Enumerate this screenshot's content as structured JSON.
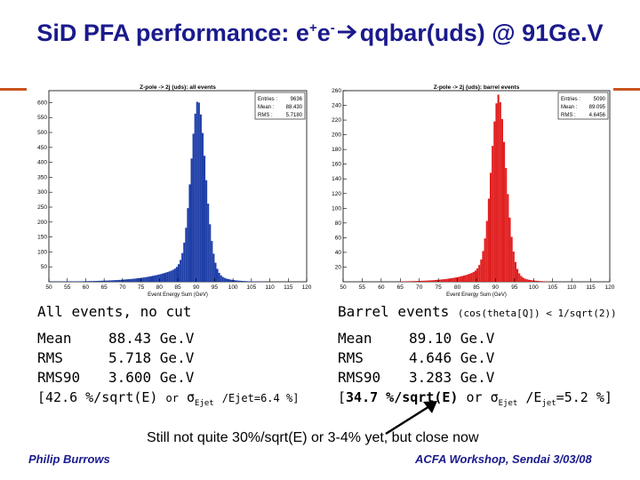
{
  "slide": {
    "title_prefix": "SiD PFA performance: e",
    "title_sup1": "+",
    "title_mid": "e",
    "title_sup2": "-",
    "title_suffix": "qqbar(uds) @ 91Ge.V",
    "arrow_icon": "right-arrow-icon",
    "accent_color": "#c8541e",
    "title_color": "#1a1a8c"
  },
  "chart_data": [
    {
      "type": "bar",
      "title": "Z-pole -> 2j (uds): all events",
      "xlabel": "Event Energy Sum (GeV)",
      "color": "#1f3fa8",
      "xlim": [
        50,
        120
      ],
      "ylim": [
        0,
        640
      ],
      "xticks": [
        50,
        55,
        60,
        65,
        70,
        75,
        80,
        85,
        90,
        95,
        100,
        105,
        110,
        115,
        120
      ],
      "yticks": [
        50,
        100,
        150,
        200,
        250,
        300,
        350,
        400,
        450,
        500,
        550,
        600
      ],
      "stats": [
        {
          "label": "Entries :",
          "value": "9636"
        },
        {
          "label": "Mean :",
          "value": "88.430"
        },
        {
          "label": "RMS :",
          "value": "5.7180"
        }
      ],
      "peak_x": 90.5,
      "peak_y": 610,
      "width_left": 1.9,
      "width_right": 2.1,
      "tail_left": 8,
      "tail_right": 3.5
    },
    {
      "type": "bar",
      "title": "Z-pole -> 2j (uds): barrel events",
      "xlabel": "Event Energy Sum (GeV)",
      "color": "#e02020",
      "xlim": [
        50,
        120
      ],
      "ylim": [
        0,
        260
      ],
      "xticks": [
        50,
        55,
        60,
        65,
        70,
        75,
        80,
        85,
        90,
        95,
        100,
        105,
        110,
        115,
        120
      ],
      "yticks": [
        20,
        40,
        60,
        80,
        100,
        120,
        140,
        160,
        180,
        200,
        220,
        240,
        260
      ],
      "stats": [
        {
          "label": "Entries :",
          "value": "5090"
        },
        {
          "label": "Mean :",
          "value": "89.095"
        },
        {
          "label": "RMS :",
          "value": "4.6456"
        }
      ],
      "peak_x": 90.8,
      "peak_y": 255,
      "width_left": 1.9,
      "width_right": 2.0,
      "tail_left": 6,
      "tail_right": 3
    }
  ],
  "left_stats": {
    "heading": "All events, no cut",
    "rows": [
      {
        "key": "Mean",
        "value": "88.43 Ge.V"
      },
      {
        "key": "RMS",
        "value": "5.718 Ge.V"
      },
      {
        "key": "RMS90",
        "value": "3.600 Ge.V"
      }
    ],
    "reso_prefix": "[42.6 %/sqrt(E)",
    "reso_or": "or",
    "reso_sigma": "σ",
    "reso_sub": "Ejet",
    "reso_suffix": "/Ejet=6.4 %]"
  },
  "right_stats": {
    "heading": "Barrel events",
    "heading_small": "(cos(theta[Q]) < 1/sqrt(2))",
    "rows": [
      {
        "key": "Mean",
        "value": "89.10 Ge.V"
      },
      {
        "key": "RMS",
        "value": "4.646 Ge.V"
      },
      {
        "key": "RMS90",
        "value": "3.283 Ge.V"
      }
    ],
    "reso_prefix": "[",
    "reso_bold": "34.7 %/sqrt(E)",
    "reso_or": "or",
    "reso_sigma": "σ",
    "reso_sub": "Ejet",
    "reso_mid": "/E",
    "reso_sub2": "jet",
    "reso_suffix": "=5.2 %]"
  },
  "note": "Still not quite 30%/sqrt(E) or 3-4% yet, but close now",
  "footer": {
    "author": "Philip Burrows",
    "event": "ACFA Workshop, Sendai 3/03/08"
  }
}
